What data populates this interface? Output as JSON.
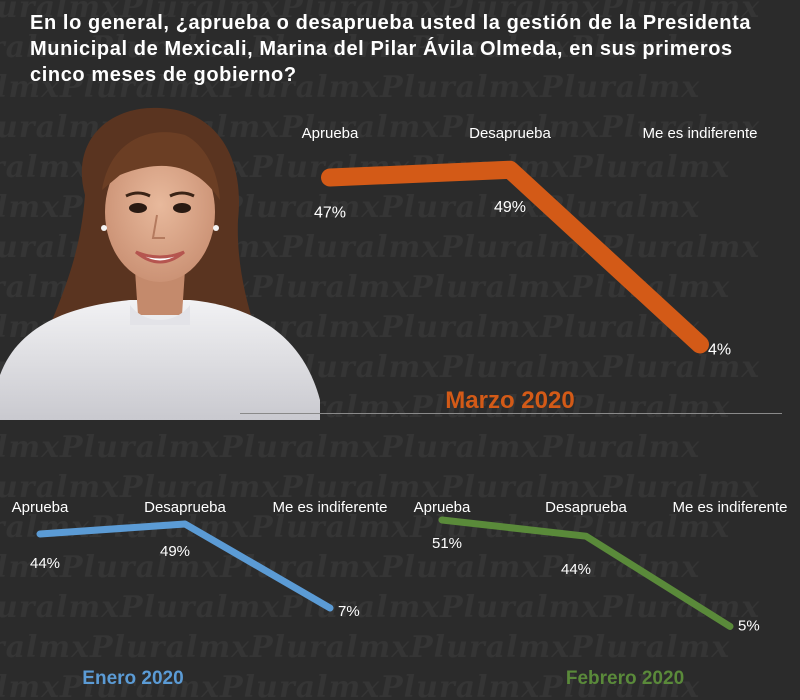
{
  "question": "En lo general, ¿aprueba o desaprueba usted la gestión de la Presidenta Municipal de Mexicali, Marina del Pilar Ávila Olmeda, en sus primeros cinco meses de gobierno?",
  "watermark_text": "PluralmxPluralmxPluralmxPluralmxPluralmx",
  "chart_data": [
    {
      "type": "line",
      "title": "Marzo 2020",
      "categories": [
        "Aprueba",
        "Desaprueba",
        "Me es indiferente"
      ],
      "values": [
        47,
        49,
        4
      ],
      "value_labels": [
        "47%",
        "49%",
        "4%"
      ],
      "unit": "%",
      "color": "#d35a17",
      "grid": false,
      "legend": "none"
    },
    {
      "type": "line",
      "title": "Enero 2020",
      "categories": [
        "Aprueba",
        "Desaprueba",
        "Me es indiferente"
      ],
      "values": [
        44,
        49,
        7
      ],
      "value_labels": [
        "44%",
        "49%",
        "7%"
      ],
      "unit": "%",
      "color": "#5b9bd5",
      "grid": false,
      "legend": "none"
    },
    {
      "type": "line",
      "title": "Febrero 2020",
      "categories": [
        "Aprueba",
        "Desaprueba",
        "Me es indiferente"
      ],
      "values": [
        51,
        44,
        5
      ],
      "value_labels": [
        "51%",
        "44%",
        "5%"
      ],
      "unit": "%",
      "color": "#5a8a3a",
      "grid": false,
      "legend": "none"
    }
  ],
  "colors": {
    "background": "#2b2b2b",
    "text": "#ffffff",
    "watermark": "#353535"
  }
}
